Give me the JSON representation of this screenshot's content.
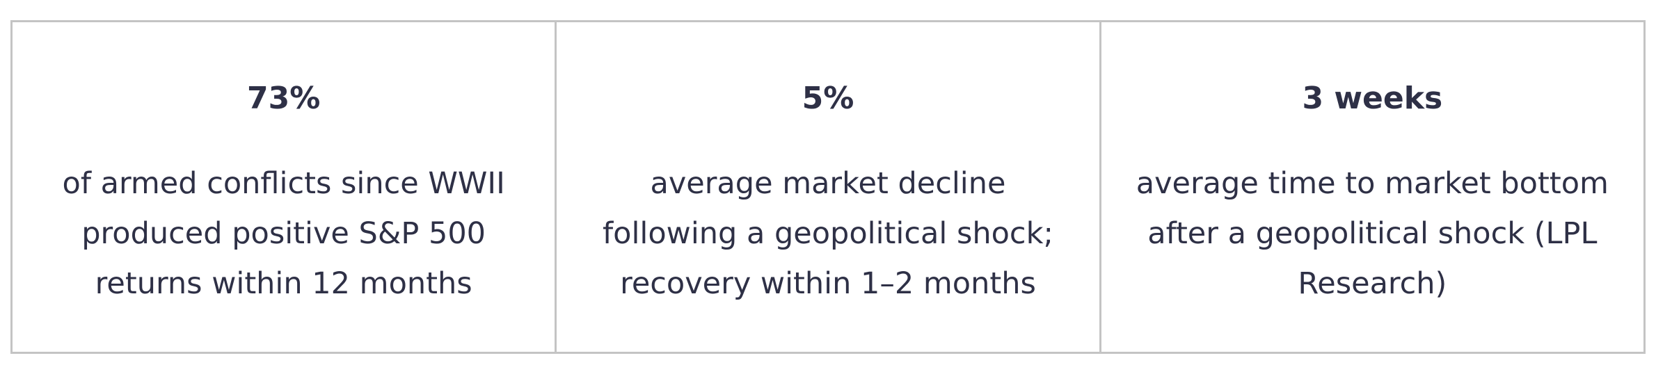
{
  "stats": [
    {
      "value": "73%",
      "text": "of armed conflicts since WWII produced positive S&P 500 returns within 12 months"
    },
    {
      "value": "5%",
      "text": "average market decline following a geopolitical shock; recovery within 1–2 months"
    },
    {
      "value": "3 weeks",
      "text": "average time to market bottom after a geopolitical shock (LPL Research)"
    }
  ]
}
